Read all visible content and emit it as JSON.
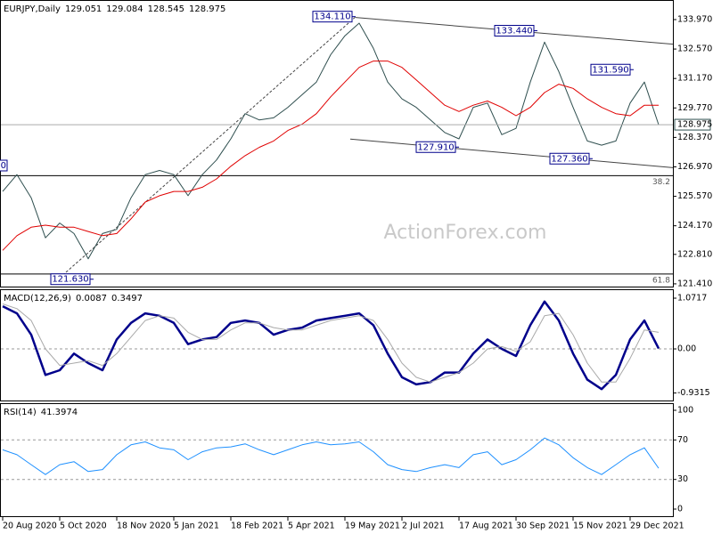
{
  "chart_data": [
    {
      "type": "line",
      "title": "EURJPY,Daily",
      "ohlc": [
        129.051,
        129.084,
        128.545,
        128.975
      ],
      "x": [
        0,
        8,
        16,
        24,
        32,
        40,
        48,
        56,
        64,
        72,
        80,
        88,
        96,
        104,
        112,
        120,
        128,
        136,
        144,
        152,
        160,
        168,
        176,
        184,
        192,
        200,
        208,
        216,
        224,
        232,
        240,
        248,
        256,
        264,
        272,
        280,
        288,
        296,
        304,
        312,
        320,
        328,
        336,
        344,
        352,
        360,
        368
      ],
      "xlim": [
        -1,
        376
      ],
      "ylim": [
        121.28,
        134.9
      ],
      "yticks": [
        {
          "value": 133.97,
          "label": "133.970"
        },
        {
          "value": 132.57,
          "label": "132.570"
        },
        {
          "value": 131.17,
          "label": "131.170"
        },
        {
          "value": 129.77,
          "label": "129.770"
        },
        {
          "value": 128.37,
          "label": "128.370"
        },
        {
          "value": 126.97,
          "label": "126.970"
        },
        {
          "value": 125.57,
          "label": "125.570"
        },
        {
          "value": 124.17,
          "label": "124.170"
        },
        {
          "value": 122.81,
          "label": "122.810"
        },
        {
          "value": 121.41,
          "label": "121.410"
        }
      ],
      "series": [
        {
          "color": "#2f4f4f",
          "values": [
            125.8,
            126.6,
            125.5,
            123.6,
            124.3,
            123.8,
            122.6,
            123.8,
            124.0,
            125.5,
            126.6,
            126.8,
            126.6,
            125.6,
            126.6,
            127.3,
            128.3,
            129.5,
            129.2,
            129.3,
            129.8,
            130.4,
            131.0,
            132.3,
            133.2,
            133.8,
            132.6,
            131.0,
            130.2,
            129.8,
            129.2,
            128.6,
            128.3,
            129.8,
            130.0,
            128.5,
            128.8,
            131.0,
            132.9,
            131.5,
            129.8,
            128.2,
            128.0,
            128.2,
            130.0,
            131.0,
            128.975
          ]
        },
        {
          "color": "#e00000",
          "values": [
            123.0,
            123.7,
            124.1,
            124.2,
            124.1,
            124.1,
            123.9,
            123.7,
            123.8,
            124.5,
            125.3,
            125.6,
            125.8,
            125.8,
            126.0,
            126.4,
            127.0,
            127.5,
            127.9,
            128.2,
            128.7,
            129.0,
            129.5,
            130.3,
            131.0,
            131.7,
            132.0,
            132.0,
            131.7,
            131.1,
            130.5,
            129.9,
            129.6,
            129.9,
            130.1,
            129.8,
            129.4,
            129.8,
            130.5,
            130.9,
            130.7,
            130.2,
            129.8,
            129.5,
            129.4,
            129.9,
            129.9
          ]
        }
      ],
      "last_price": 128.975,
      "annotations": [
        {
          "x": 198,
          "value": 134.11,
          "label": "134.110"
        },
        {
          "x": 300,
          "value": 133.44,
          "label": "133.440"
        },
        {
          "x": 354,
          "value": 131.59,
          "label": "131.590"
        },
        {
          "x": 256,
          "value": 127.91,
          "label": "127.910"
        },
        {
          "x": 331,
          "value": 127.36,
          "label": "127.360"
        },
        {
          "x": 51,
          "value": 121.63,
          "label": "121.630"
        }
      ],
      "clipped_label": "0",
      "levels": [
        {
          "value": 126.55,
          "label": "38.2"
        },
        {
          "value": 121.88,
          "label": "61.8"
        }
      ],
      "trendlines": [
        {
          "x": [
            198,
            376
          ],
          "values": [
            134.07,
            132.8
          ],
          "color": "#444444"
        },
        {
          "x": [
            195,
            376
          ],
          "values": [
            128.29,
            126.93
          ],
          "color": "#444444"
        },
        {
          "x": [
            28,
            198
          ],
          "values": [
            121.4,
            134.1
          ],
          "color": "#444444",
          "dashed": true
        }
      ],
      "watermark": "ActionForex.com"
    },
    {
      "type": "line",
      "title": "MACD(12,26,9)",
      "readings": [
        0.0087,
        0.3497
      ],
      "x": [
        0,
        8,
        16,
        24,
        32,
        40,
        48,
        56,
        64,
        72,
        80,
        88,
        96,
        104,
        112,
        120,
        128,
        136,
        144,
        152,
        160,
        168,
        176,
        184,
        192,
        200,
        208,
        216,
        224,
        232,
        240,
        248,
        256,
        264,
        272,
        280,
        288,
        296,
        304,
        312,
        320,
        328,
        336,
        344,
        352,
        360,
        368
      ],
      "xlim": [
        -1,
        376
      ],
      "ylim": [
        -1.09,
        1.26
      ],
      "yticks": [
        1.0717,
        {
          "value": 0,
          "label": "0.00"
        },
        -0.9315
      ],
      "levels": [
        0
      ],
      "series": [
        {
          "color": "#00008b",
          "width": 2.5,
          "values": [
            0.9,
            0.75,
            0.3,
            -0.55,
            -0.45,
            -0.1,
            -0.3,
            -0.45,
            0.2,
            0.55,
            0.75,
            0.7,
            0.55,
            0.1,
            0.2,
            0.25,
            0.55,
            0.6,
            0.55,
            0.3,
            0.4,
            0.45,
            0.6,
            0.65,
            0.7,
            0.75,
            0.5,
            -0.1,
            -0.6,
            -0.75,
            -0.7,
            -0.5,
            -0.5,
            -0.1,
            0.2,
            0.0,
            -0.15,
            0.5,
            1.0,
            0.6,
            -0.1,
            -0.65,
            -0.85,
            -0.55,
            0.2,
            0.6,
            0.0087
          ]
        },
        {
          "color": "#a9a9a9",
          "width": 1,
          "values": [
            0.95,
            0.85,
            0.6,
            0.0,
            -0.35,
            -0.3,
            -0.25,
            -0.35,
            -0.1,
            0.25,
            0.6,
            0.7,
            0.65,
            0.35,
            0.2,
            0.2,
            0.4,
            0.55,
            0.55,
            0.45,
            0.4,
            0.4,
            0.5,
            0.6,
            0.65,
            0.7,
            0.6,
            0.2,
            -0.3,
            -0.6,
            -0.7,
            -0.6,
            -0.5,
            -0.3,
            0.0,
            0.05,
            -0.05,
            0.15,
            0.7,
            0.75,
            0.3,
            -0.3,
            -0.7,
            -0.7,
            -0.2,
            0.4,
            0.3497
          ]
        }
      ]
    },
    {
      "type": "line",
      "title": "RSI(14)",
      "readings": [
        41.3974
      ],
      "x": [
        0,
        8,
        16,
        24,
        32,
        40,
        48,
        56,
        64,
        72,
        80,
        88,
        96,
        104,
        112,
        120,
        128,
        136,
        144,
        152,
        160,
        168,
        176,
        184,
        192,
        200,
        208,
        216,
        224,
        232,
        240,
        248,
        256,
        264,
        272,
        280,
        288,
        296,
        304,
        312,
        320,
        328,
        336,
        344,
        352,
        360,
        368
      ],
      "xlim": [
        -1,
        376
      ],
      "ylim": [
        -7.2,
        107.2
      ],
      "yticks": [
        100,
        70,
        30,
        0
      ],
      "levels": [
        70,
        30
      ],
      "series": [
        {
          "color": "#1e90ff",
          "width": 1,
          "values": [
            60,
            55,
            45,
            35,
            45,
            48,
            38,
            40,
            55,
            65,
            68,
            62,
            60,
            50,
            58,
            62,
            63,
            66,
            60,
            55,
            60,
            65,
            68,
            65,
            66,
            68,
            58,
            45,
            40,
            38,
            42,
            45,
            42,
            55,
            58,
            45,
            50,
            60,
            72,
            65,
            52,
            42,
            35,
            45,
            55,
            62,
            41.3974
          ]
        }
      ],
      "xticks": [
        {
          "value": 0,
          "label": "20 Aug 2020"
        },
        {
          "value": 32,
          "label": "5 Oct 2020"
        },
        {
          "value": 64,
          "label": "18 Nov 2020"
        },
        {
          "value": 96,
          "label": "5 Jan 2021"
        },
        {
          "value": 128,
          "label": "18 Feb 2021"
        },
        {
          "value": 160,
          "label": "5 Apr 2021"
        },
        {
          "value": 192,
          "label": "19 May 2021"
        },
        {
          "value": 224,
          "label": "2 Jul 2021"
        },
        {
          "value": 256,
          "label": "17 Aug 2021"
        },
        {
          "value": 288,
          "label": "30 Sep 2021"
        },
        {
          "value": 320,
          "label": "15 Nov 2021"
        },
        {
          "value": 352,
          "label": "29 Dec 2021"
        }
      ]
    }
  ]
}
